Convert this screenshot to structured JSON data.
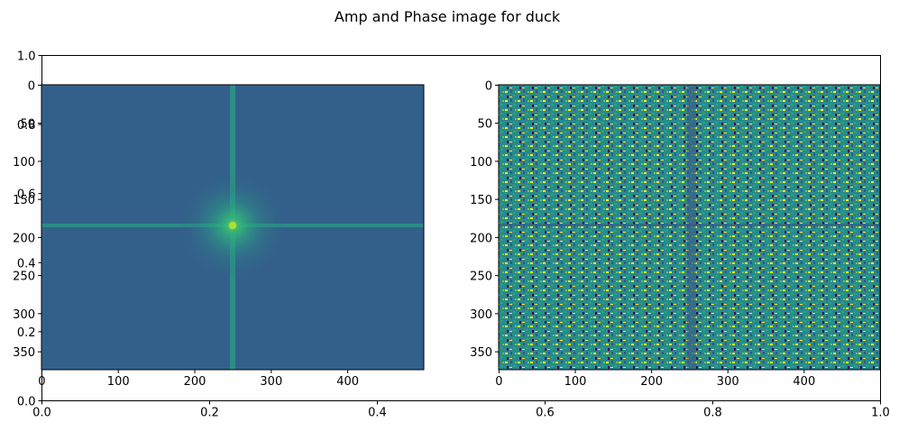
{
  "chart_data": {
    "type": "heatmap",
    "title": "Amp and Phase image for duck",
    "background_axes": {
      "xlim": [
        0.0,
        1.0
      ],
      "ylim": [
        0.0,
        1.0
      ],
      "xticks": [
        "0.0",
        "0.2",
        "0.4",
        "0.6",
        "0.8",
        "1.0"
      ],
      "yticks": [
        "0.0",
        "0.2",
        "0.4",
        "0.6",
        "0.8",
        "1.0"
      ]
    },
    "panels": [
      {
        "name": "amplitude",
        "image_shape": [
          374,
          500
        ],
        "xlim": [
          -0.5,
          499.5
        ],
        "ylim": [
          373.5,
          -0.5
        ],
        "xticks": [
          "0",
          "100",
          "200",
          "300",
          "400"
        ],
        "yticks": [
          "0",
          "50",
          "100",
          "150",
          "200",
          "250",
          "300",
          "350"
        ],
        "center": [
          250,
          187
        ],
        "colormap": "viridis"
      },
      {
        "name": "phase",
        "image_shape": [
          374,
          500
        ],
        "xlim": [
          -0.5,
          499.5
        ],
        "ylim": [
          373.5,
          -0.5
        ],
        "xticks": [
          "0",
          "100",
          "200",
          "300",
          "400"
        ],
        "yticks": [
          "0",
          "50",
          "100",
          "150",
          "200",
          "250",
          "300",
          "350"
        ],
        "center": [
          250,
          187
        ],
        "colormap": "viridis"
      }
    ],
    "colors": {
      "amp_bg": "#33608a",
      "amp_glow": "#2a9e86",
      "amp_core": "#7fd34e",
      "phase_bg": "#2a8a8a",
      "phase_a": "#fde725",
      "phase_b": "#3b528b",
      "phase_c": "#21a585",
      "phase_d": "#440154"
    }
  }
}
